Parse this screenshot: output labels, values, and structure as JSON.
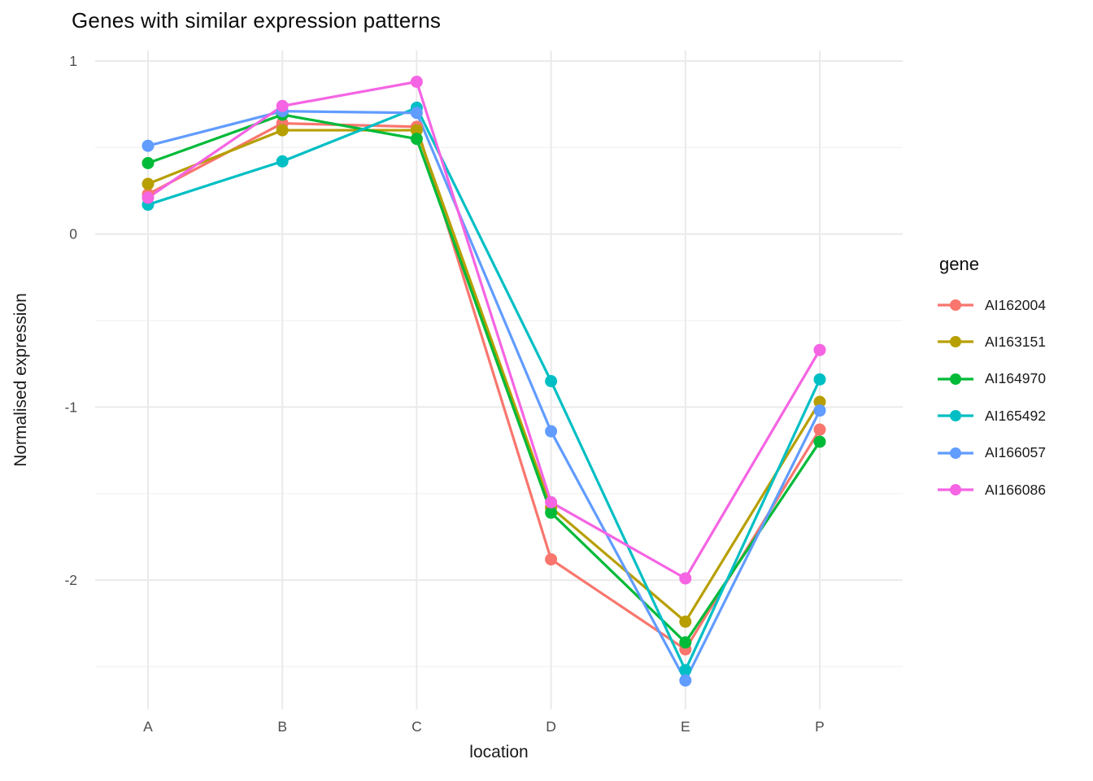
{
  "title": "Genes with similar expression patterns",
  "chart_data": {
    "type": "line",
    "title": "Genes with similar expression patterns",
    "xlabel": "location",
    "ylabel": "Normalised expression",
    "categories": [
      "A",
      "B",
      "C",
      "D",
      "E",
      "P"
    ],
    "y_ticks": [
      1,
      0,
      -1,
      -2
    ],
    "y_minor_ticks": [
      0.5,
      -0.5,
      -1.5,
      -2.5
    ],
    "ylim": [
      -2.76,
      1.06
    ],
    "grid": true,
    "legend_title": "gene",
    "legend_position": "right",
    "series": [
      {
        "name": "AI162004",
        "color": "#F8766D",
        "values": [
          0.23,
          0.64,
          0.62,
          -1.88,
          -2.4,
          -1.13
        ]
      },
      {
        "name": "AI163151",
        "color": "#B79F00",
        "values": [
          0.29,
          0.6,
          0.6,
          -1.58,
          -2.24,
          -0.97
        ]
      },
      {
        "name": "AI164970",
        "color": "#00BA38",
        "values": [
          0.41,
          0.69,
          0.55,
          -1.61,
          -2.36,
          -1.2
        ]
      },
      {
        "name": "AI165492",
        "color": "#00BFC4",
        "values": [
          0.17,
          0.42,
          0.73,
          -0.85,
          -2.52,
          -0.84
        ]
      },
      {
        "name": "AI166057",
        "color": "#619CFF",
        "values": [
          0.51,
          0.71,
          0.7,
          -1.14,
          -2.58,
          -1.02
        ]
      },
      {
        "name": "AI166086",
        "color": "#F564E3",
        "values": [
          0.21,
          0.74,
          0.88,
          -1.55,
          -1.99,
          -0.67
        ]
      }
    ],
    "style": {
      "axis_text_color": "#4D4D4D",
      "grid_major_color": "#EAEAEA",
      "grid_minor_color": "#F4F4F4",
      "background": "#FFFFFF"
    }
  }
}
